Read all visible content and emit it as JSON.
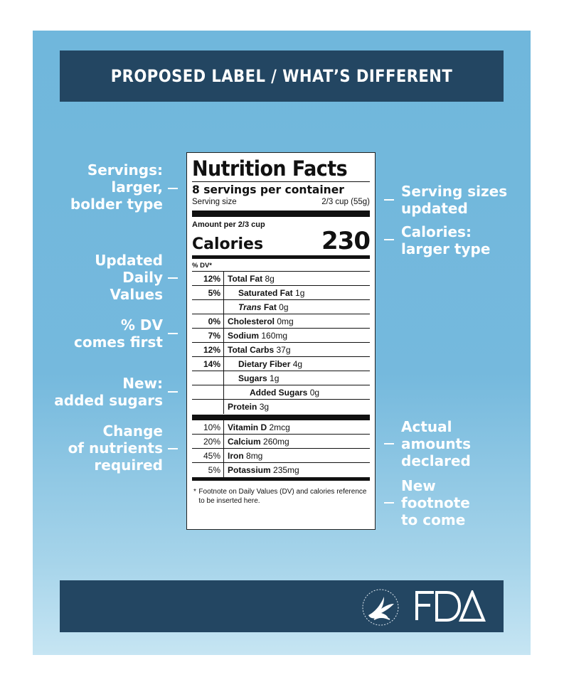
{
  "header": {
    "title": "PROPOSED LABEL / WHAT’S DIFFERENT"
  },
  "annotations_left": [
    {
      "lines": [
        "Servings:",
        "larger,",
        "bolder type"
      ]
    },
    {
      "lines": [
        "Updated",
        "Daily",
        "Values"
      ]
    },
    {
      "lines": [
        "% DV",
        "comes first"
      ]
    },
    {
      "lines": [
        "New:",
        "added sugars"
      ]
    },
    {
      "lines": [
        "Change",
        "of nutrients",
        "required"
      ]
    }
  ],
  "annotations_right": [
    {
      "lines": [
        "Serving sizes",
        "updated"
      ]
    },
    {
      "lines": [
        "Calories:",
        "larger type"
      ]
    },
    {
      "lines": [
        "Actual",
        "amounts",
        "declared"
      ]
    },
    {
      "lines": [
        "New",
        "footnote",
        "to come"
      ]
    }
  ],
  "label": {
    "title": "Nutrition Facts",
    "servings": "8 servings per container",
    "serving_size_label": "Serving size",
    "serving_size_value": "2/3 cup (55g)",
    "amount_per": "Amount per 2/3 cup",
    "calories_label": "Calories",
    "calories_value": "230",
    "dv_header": "% DV*",
    "nutrients": [
      {
        "pct": "12%",
        "name": "Total Fat",
        "amount": "8g"
      },
      {
        "pct": "5%",
        "name": "Saturated Fat",
        "amount": "1g"
      },
      {
        "pct": "",
        "name_italic": "Trans",
        "name": "Fat",
        "amount": "0g"
      },
      {
        "pct": "0%",
        "name": "Cholesterol",
        "amount": "0mg"
      },
      {
        "pct": "7%",
        "name": "Sodium",
        "amount": "160mg"
      },
      {
        "pct": "12%",
        "name": "Total Carbs",
        "amount": "37g"
      },
      {
        "pct": "14%",
        "name": "Dietary Fiber",
        "amount": "4g"
      },
      {
        "pct": "",
        "name": "Sugars",
        "amount": "1g"
      },
      {
        "pct": "",
        "name": "Added Sugars",
        "amount": "0g"
      },
      {
        "pct": "",
        "name": "Protein",
        "amount": "3g"
      }
    ],
    "vitamins": [
      {
        "pct": "10%",
        "name": "Vitamin D",
        "amount": "2mcg"
      },
      {
        "pct": "20%",
        "name": "Calcium",
        "amount": "260mg"
      },
      {
        "pct": "45%",
        "name": "Iron",
        "amount": "8mg"
      },
      {
        "pct": "5%",
        "name": "Potassium",
        "amount": "235mg"
      }
    ],
    "footnote_star": "*",
    "footnote": "Footnote on Daily Values (DV) and calories reference to be inserted here."
  },
  "footer": {
    "logo_text": "FDA",
    "seal_icon": "hhs-eagle-seal-icon"
  },
  "colors": {
    "navy": "#234662",
    "sky": "#75b9dd"
  }
}
